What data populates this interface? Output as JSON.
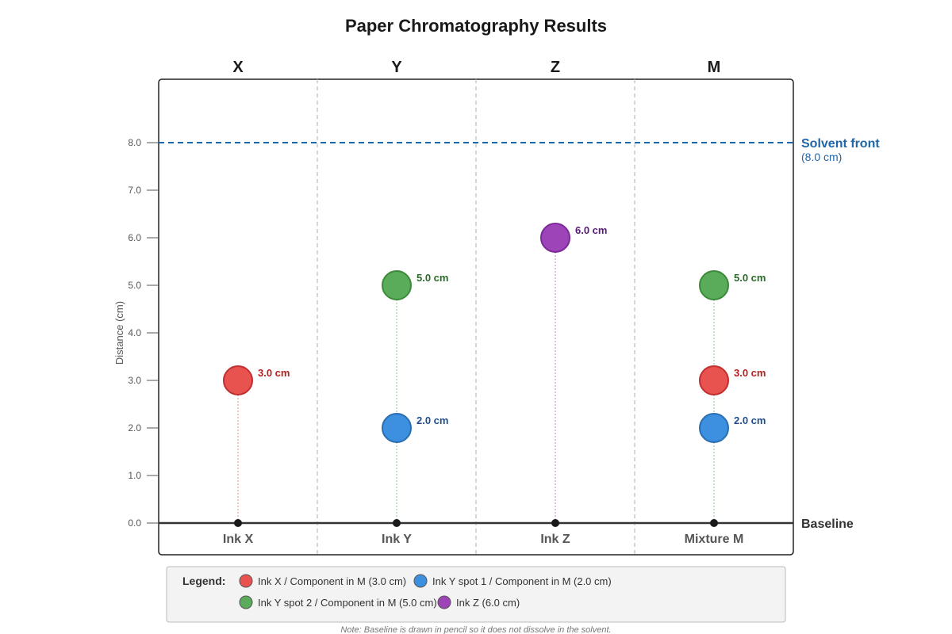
{
  "chart_data": {
    "type": "scatter",
    "title": "Paper Chromatography Results",
    "ylabel": "Distance (cm)",
    "ylim": [
      0,
      8
    ],
    "yticks": [
      "0.0",
      "1.0",
      "2.0",
      "3.0",
      "4.0",
      "5.0",
      "6.0",
      "7.0",
      "8.0"
    ],
    "lanes": [
      {
        "head": "X",
        "foot": "Ink X"
      },
      {
        "head": "Y",
        "foot": "Ink Y"
      },
      {
        "head": "Z",
        "foot": "Ink Z"
      },
      {
        "head": "M",
        "foot": "Mixture M"
      }
    ],
    "spots": [
      {
        "lane": 0,
        "y": 3.0,
        "label": "3.0 cm",
        "color": "#e8524f",
        "stroke": "#c03030",
        "text_color": "#b52020"
      },
      {
        "lane": 1,
        "y": 5.0,
        "label": "5.0 cm",
        "color": "#5aab5a",
        "stroke": "#3a8a3a",
        "text_color": "#2a6a2a"
      },
      {
        "lane": 1,
        "y": 2.0,
        "label": "2.0 cm",
        "color": "#3d8fe0",
        "stroke": "#2a6fb0",
        "text_color": "#1f4f8f"
      },
      {
        "lane": 2,
        "y": 6.0,
        "label": "6.0 cm",
        "color": "#9c44b8",
        "stroke": "#7a2a98",
        "text_color": "#5a1a78"
      },
      {
        "lane": 3,
        "y": 5.0,
        "label": "5.0 cm",
        "color": "#5aab5a",
        "stroke": "#3a8a3a",
        "text_color": "#2a6a2a"
      },
      {
        "lane": 3,
        "y": 3.0,
        "label": "3.0 cm",
        "color": "#e8524f",
        "stroke": "#c03030",
        "text_color": "#b52020"
      },
      {
        "lane": 3,
        "y": 2.0,
        "label": "2.0 cm",
        "color": "#3d8fe0",
        "stroke": "#2a6fb0",
        "text_color": "#1f4f8f"
      }
    ],
    "solvent_front": {
      "y": 8.0,
      "label": "Solvent front",
      "sublabel": "(8.0 cm)",
      "color": "#1f66a8"
    },
    "baseline": {
      "label": "Baseline"
    },
    "legend": {
      "title": "Legend:",
      "items": [
        {
          "label": "Ink X / Component in M (3.0 cm)",
          "color": "#e8524f"
        },
        {
          "label": "Ink Y spot 1 / Component in M (2.0 cm)",
          "color": "#3d8fe0"
        },
        {
          "label": "Ink Y spot 2 / Component in M (5.0 cm)",
          "color": "#5aab5a"
        },
        {
          "label": "Ink Z (6.0 cm)",
          "color": "#9c44b8"
        }
      ]
    },
    "note": "Note: Baseline is drawn in pencil so it does not dissolve in the solvent.",
    "grid": false
  }
}
